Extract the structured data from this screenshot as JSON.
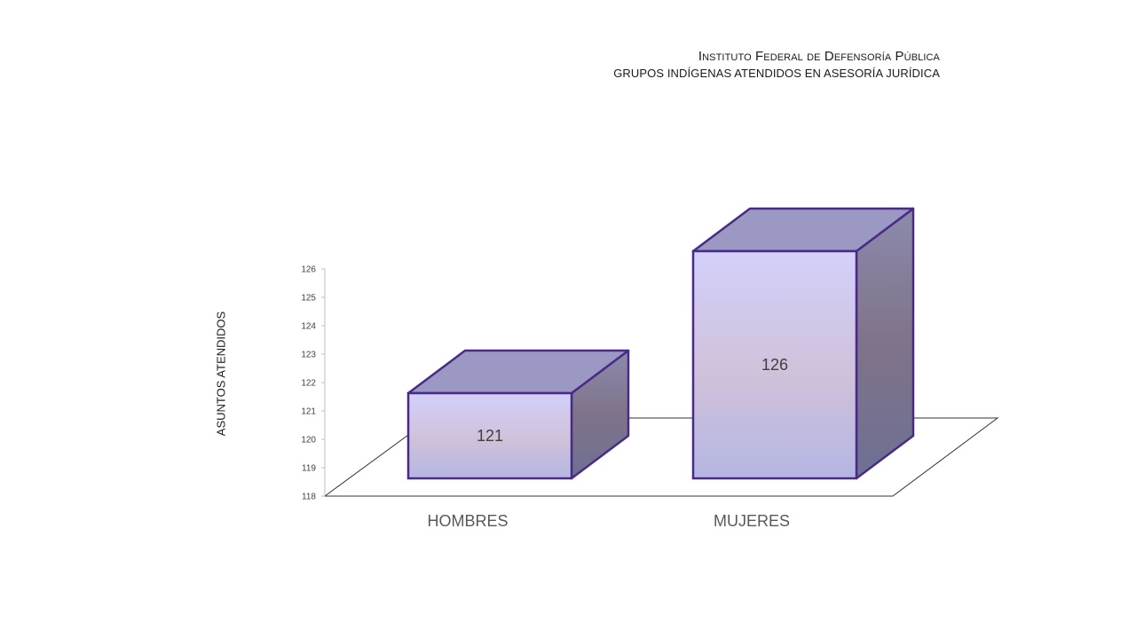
{
  "header": {
    "title": "Instituto Federal de Defensoría Pública",
    "subtitle": "GRUPOS INDÍGENAS ATENDIDOS EN ASESORÍA JURÍDICA"
  },
  "chart_data": {
    "type": "bar",
    "title": "Instituto Federal de Defensoría Pública",
    "subtitle": "GRUPOS INDÍGENAS ATENDIDOS EN ASESORÍA JURÍDICA",
    "ylabel": "ASUNTOS ATENDIDOS",
    "xlabel": "",
    "categories": [
      "HOMBRES",
      "MUJERES"
    ],
    "values": [
      121,
      126
    ],
    "data_labels": [
      "121",
      "126"
    ],
    "ylim": [
      118,
      126
    ],
    "yticks": [
      118,
      119,
      120,
      121,
      122,
      123,
      124,
      125,
      126
    ],
    "grid": false,
    "legend": "none",
    "style": "3d-column",
    "colors": {
      "front_top": "#d3d0fb",
      "front_mid": "#cfc1da",
      "front_bottom": "#b5b6e3",
      "top_face": "#9b99c3",
      "side_top": "#8c8aac",
      "side_mid": "#7f7389",
      "side_bottom": "#6e7094",
      "outline": "#4a2a87"
    }
  }
}
